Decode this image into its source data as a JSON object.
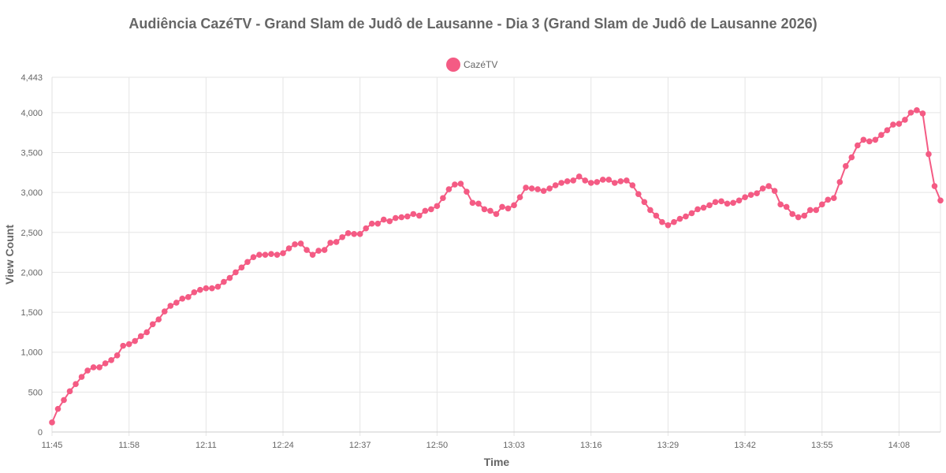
{
  "chart_data": {
    "type": "line",
    "title": "Audiência CazéTV - Grand Slam de Judô de Lausanne - Dia 3 (Grand Slam de Judô de Lausanne 2026)",
    "xlabel": "Time",
    "ylabel": "View Count",
    "ylim": [
      0,
      4443
    ],
    "y_ticks": [
      0,
      500,
      1000,
      1500,
      2000,
      2500,
      3000,
      3500,
      4000,
      4443
    ],
    "y_tick_labels": [
      "0",
      "500",
      "1,000",
      "1,500",
      "2,000",
      "2,500",
      "3,000",
      "3,500",
      "4,000",
      "4,443"
    ],
    "x_tick_labels": [
      "11:45",
      "11:58",
      "12:11",
      "12:24",
      "12:37",
      "12:50",
      "13:03",
      "13:16",
      "13:29",
      "13:42",
      "13:55",
      "14:08"
    ],
    "x_tick_interval": 13,
    "grid": true,
    "legend_position": "top-center",
    "series": [
      {
        "name": "CazéTV",
        "color": "#f45b84",
        "x_start": "11:45",
        "x_step_minutes": 1,
        "values": [
          120,
          290,
          400,
          510,
          600,
          690,
          770,
          810,
          810,
          860,
          900,
          960,
          1080,
          1100,
          1140,
          1200,
          1250,
          1350,
          1410,
          1510,
          1580,
          1620,
          1670,
          1690,
          1750,
          1780,
          1800,
          1800,
          1820,
          1880,
          1930,
          2000,
          2060,
          2130,
          2190,
          2220,
          2220,
          2230,
          2220,
          2240,
          2300,
          2350,
          2360,
          2280,
          2220,
          2270,
          2280,
          2370,
          2380,
          2440,
          2490,
          2480,
          2480,
          2550,
          2610,
          2610,
          2660,
          2640,
          2680,
          2690,
          2700,
          2730,
          2710,
          2770,
          2790,
          2830,
          2930,
          3040,
          3100,
          3110,
          3010,
          2870,
          2860,
          2790,
          2770,
          2730,
          2820,
          2800,
          2840,
          2940,
          3060,
          3050,
          3040,
          3020,
          3050,
          3090,
          3120,
          3140,
          3150,
          3200,
          3150,
          3120,
          3130,
          3160,
          3160,
          3120,
          3140,
          3150,
          3090,
          2980,
          2880,
          2780,
          2710,
          2630,
          2590,
          2630,
          2670,
          2700,
          2740,
          2790,
          2810,
          2840,
          2880,
          2890,
          2860,
          2870,
          2900,
          2940,
          2970,
          2990,
          3050,
          3080,
          3020,
          2850,
          2820,
          2730,
          2690,
          2710,
          2780,
          2780,
          2850,
          2910,
          2930,
          3130,
          3330,
          3440,
          3590,
          3660,
          3640,
          3660,
          3720,
          3780,
          3850,
          3860,
          3910,
          4000,
          4030,
          3990,
          3480,
          3080,
          2900
        ]
      }
    ]
  }
}
